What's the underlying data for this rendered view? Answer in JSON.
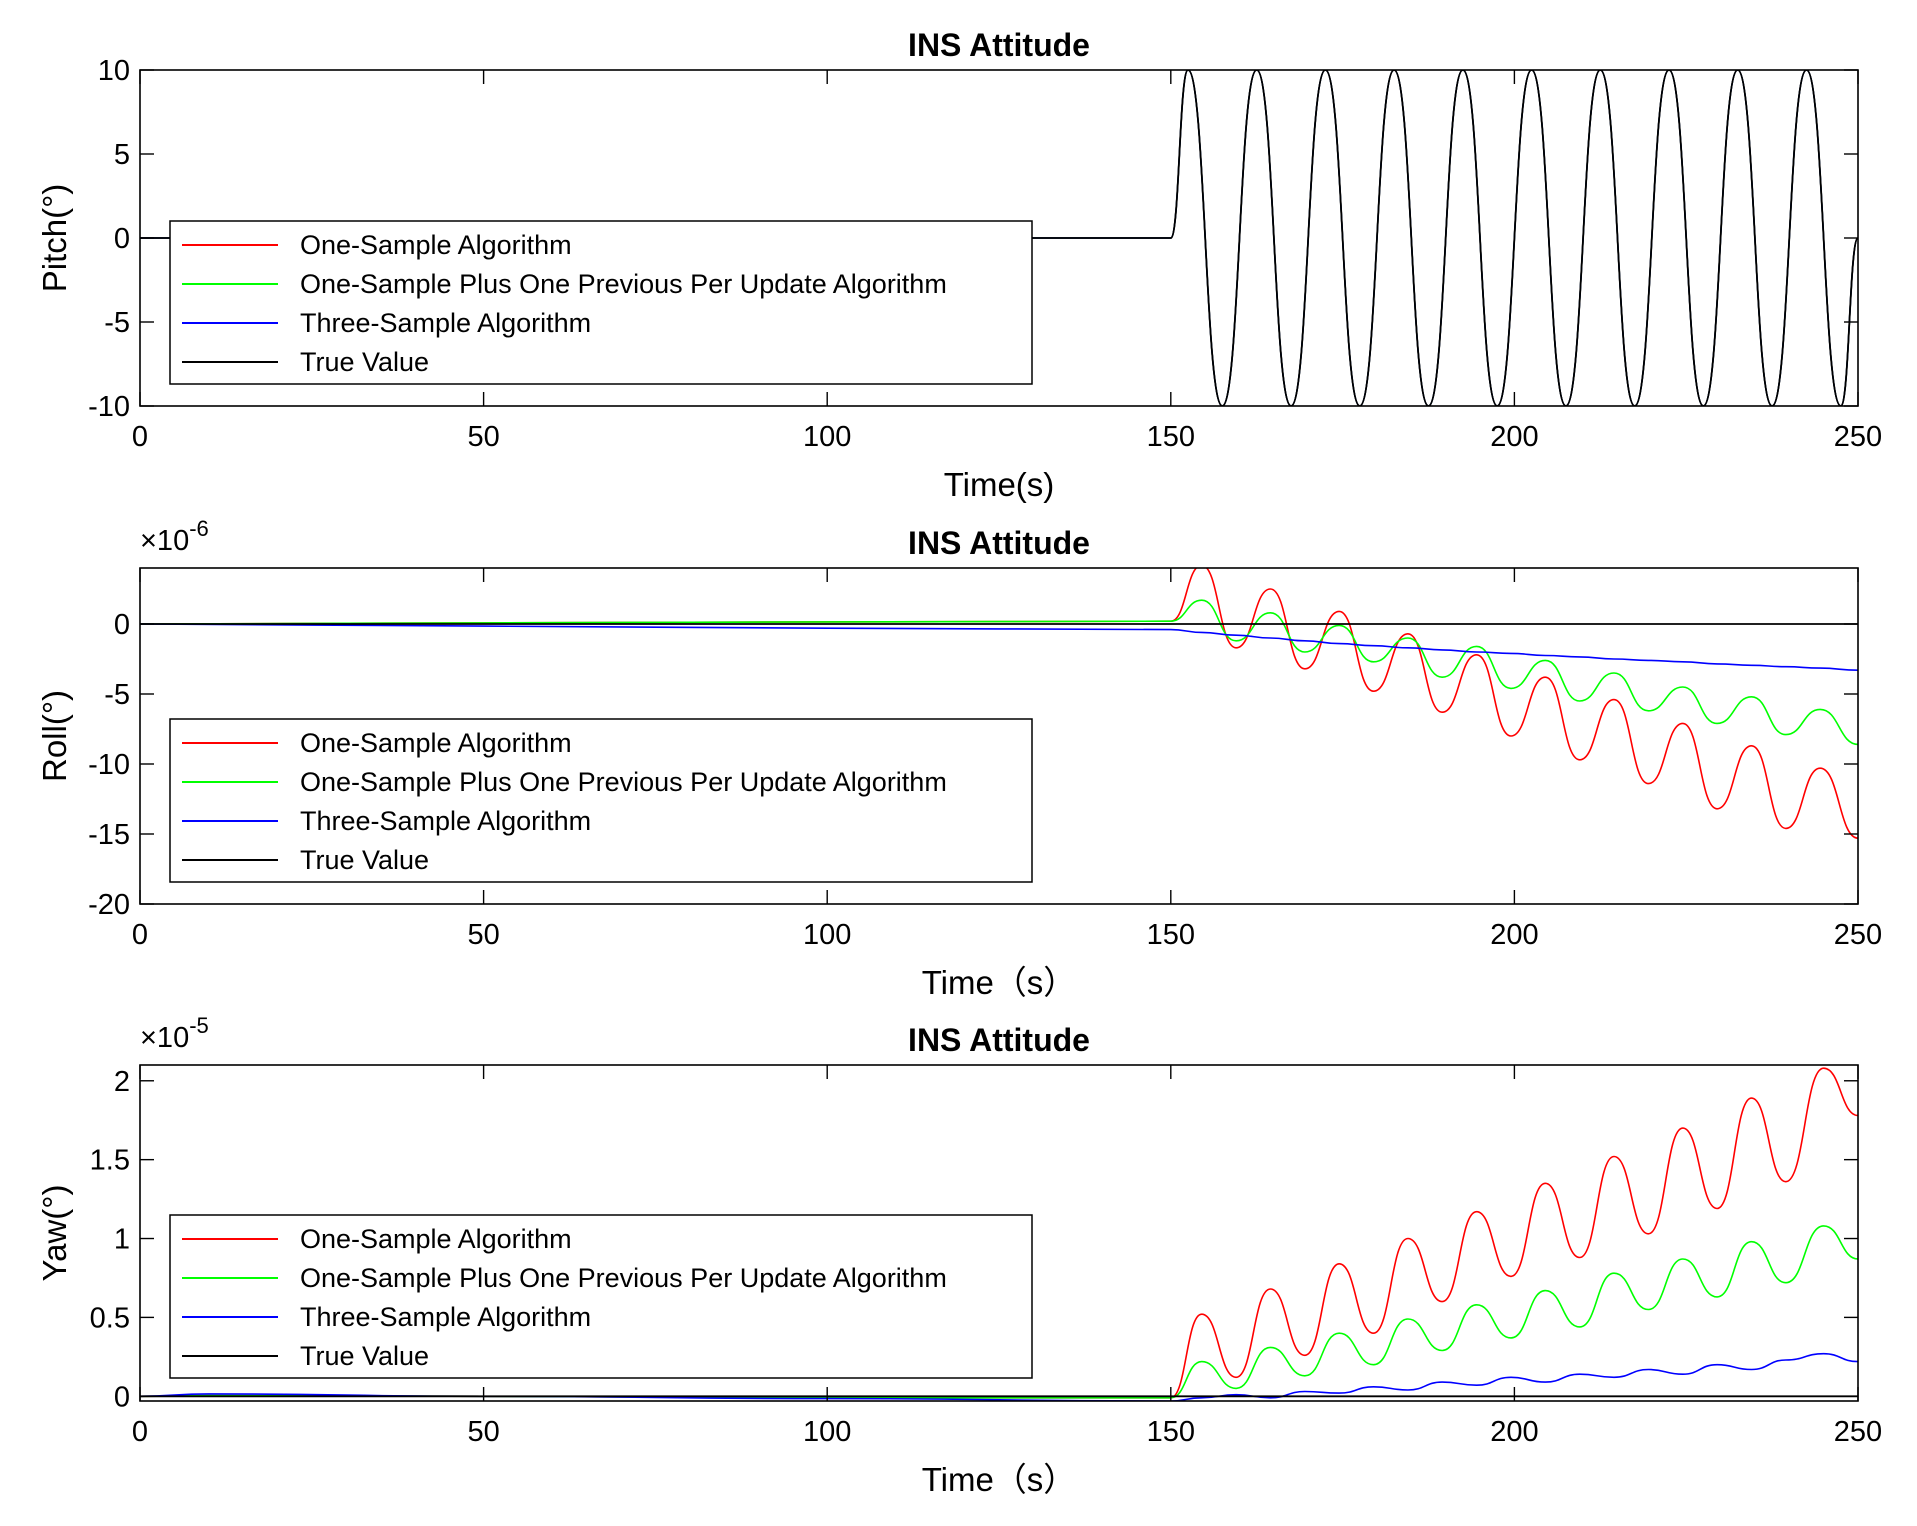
{
  "chart_data": [
    {
      "type": "line",
      "title": "INS Attitude",
      "xlabel": "Time(s)",
      "ylabel": "Pitch(°)",
      "exponent_label": "",
      "xlim": [
        0,
        250
      ],
      "ylim": [
        -10,
        10
      ],
      "xticks": [
        0,
        50,
        100,
        150,
        200,
        250
      ],
      "yticks": [
        -10,
        -5,
        0,
        5,
        10
      ],
      "x": [
        0,
        150,
        152.5,
        157.5,
        162.5,
        167.5,
        172.5,
        177.5,
        182.5,
        187.5,
        192.5,
        197.5,
        202.5,
        207.5,
        212.5,
        217.5,
        222.5,
        227.5,
        232.5,
        237.5,
        242.5,
        247.5,
        250
      ],
      "legend_location": "left",
      "series": [
        {
          "name": "One-Sample Algorithm",
          "color": "#ff0000",
          "values": [
            0,
            0,
            10,
            -10,
            10,
            -10,
            10,
            -10,
            10,
            -10,
            10,
            -10,
            10,
            -10,
            10,
            -10,
            10,
            -10,
            10,
            -10,
            10,
            -10,
            0
          ]
        },
        {
          "name": "One-Sample Plus One Previous Per Update Algorithm",
          "color": "#00ff00",
          "values": [
            0,
            0,
            10,
            -10,
            10,
            -10,
            10,
            -10,
            10,
            -10,
            10,
            -10,
            10,
            -10,
            10,
            -10,
            10,
            -10,
            10,
            -10,
            10,
            -10,
            0
          ]
        },
        {
          "name": "Three-Sample Algorithm",
          "color": "#0000ff",
          "values": [
            0,
            0,
            10,
            -10,
            10,
            -10,
            10,
            -10,
            10,
            -10,
            10,
            -10,
            10,
            -10,
            10,
            -10,
            10,
            -10,
            10,
            -10,
            10,
            -10,
            0
          ]
        },
        {
          "name": "True Value",
          "color": "#000000",
          "values": [
            0,
            0,
            10,
            -10,
            10,
            -10,
            10,
            -10,
            10,
            -10,
            10,
            -10,
            10,
            -10,
            10,
            -10,
            10,
            -10,
            10,
            -10,
            10,
            -10,
            0
          ]
        }
      ]
    },
    {
      "type": "line",
      "title": "INS Attitude",
      "xlabel": "Time（s）",
      "ylabel": "Roll(°)",
      "exponent_label": "×10",
      "exponent_power": "-6",
      "xlim": [
        0,
        250
      ],
      "ylim": [
        -20,
        4
      ],
      "xticks": [
        0,
        50,
        100,
        150,
        200,
        250
      ],
      "yticks": [
        -20,
        -15,
        -10,
        -5,
        0
      ],
      "x": [
        0,
        50,
        100,
        150,
        154.5,
        159.5,
        164.5,
        169.5,
        174.5,
        179.5,
        184.5,
        189.5,
        194.5,
        199.5,
        204.5,
        209.5,
        214.5,
        219.5,
        224.5,
        229.5,
        234.5,
        239.5,
        244.5,
        250
      ],
      "legend_location": "left",
      "series": [
        {
          "name": "One-Sample Algorithm",
          "color": "#ff0000",
          "values": [
            0,
            0.08,
            0.15,
            0.2,
            4.2,
            -1.7,
            2.5,
            -3.2,
            0.9,
            -4.8,
            -0.7,
            -6.3,
            -2.2,
            -8,
            -3.8,
            -9.7,
            -5.4,
            -11.4,
            -7.1,
            -13.2,
            -8.7,
            -14.6,
            -10.3,
            -15.3
          ]
        },
        {
          "name": "One-Sample Plus One Previous Per Update Algorithm",
          "color": "#00ff00",
          "values": [
            0,
            0.08,
            0.15,
            0.2,
            1.7,
            -1.2,
            0.8,
            -2,
            -0.1,
            -2.7,
            -1,
            -3.8,
            -1.6,
            -4.6,
            -2.6,
            -5.5,
            -3.5,
            -6.2,
            -4.5,
            -7.1,
            -5.2,
            -7.9,
            -6.1,
            -8.6
          ]
        },
        {
          "name": "Three-Sample Algorithm",
          "color": "#0000ff",
          "values": [
            0,
            -0.15,
            -0.3,
            -0.4,
            -0.6,
            -0.8,
            -1,
            -1.2,
            -1.4,
            -1.55,
            -1.7,
            -1.85,
            -2,
            -2.1,
            -2.25,
            -2.35,
            -2.5,
            -2.6,
            -2.7,
            -2.85,
            -2.95,
            -3.05,
            -3.15,
            -3.3
          ]
        },
        {
          "name": "True Value",
          "color": "#000000",
          "values": [
            0,
            0,
            0,
            0,
            0,
            0,
            0,
            0,
            0,
            0,
            0,
            0,
            0,
            0,
            0,
            0,
            0,
            0,
            0,
            0,
            0,
            0,
            0,
            0
          ]
        }
      ]
    },
    {
      "type": "line",
      "title": "INS Attitude",
      "xlabel": "Time（s）",
      "ylabel": "Yaw(°)",
      "exponent_label": "×10",
      "exponent_power": "-5",
      "xlim": [
        0,
        250
      ],
      "ylim": [
        -0.03,
        2.1
      ],
      "xticks": [
        0,
        50,
        100,
        150,
        200,
        250
      ],
      "yticks": [
        0,
        0.5,
        1,
        1.5,
        2
      ],
      "ytick_labels": [
        "0",
        "0.5",
        "1",
        "1.5",
        "2"
      ],
      "x": [
        0,
        10,
        50,
        100,
        150,
        154.5,
        159.5,
        164.5,
        169.5,
        174.5,
        179.5,
        184.5,
        189.5,
        194.5,
        199.5,
        204.5,
        209.5,
        214.5,
        219.5,
        224.5,
        229.5,
        234.5,
        239.5,
        245,
        250
      ],
      "legend_location": "left",
      "series": [
        {
          "name": "One-Sample Algorithm",
          "color": "#ff0000",
          "values": [
            0,
            0.005,
            0,
            -0.01,
            -0.01,
            0.52,
            0.12,
            0.68,
            0.26,
            0.84,
            0.4,
            1,
            0.6,
            1.17,
            0.76,
            1.35,
            0.88,
            1.52,
            1.03,
            1.7,
            1.19,
            1.89,
            1.36,
            2.08,
            1.78
          ]
        },
        {
          "name": "One-Sample Plus One Previous Per Update Algorithm",
          "color": "#00ff00",
          "values": [
            0,
            0.005,
            0,
            -0.01,
            -0.01,
            0.22,
            0.05,
            0.31,
            0.13,
            0.4,
            0.2,
            0.49,
            0.29,
            0.58,
            0.37,
            0.67,
            0.44,
            0.78,
            0.55,
            0.87,
            0.63,
            0.98,
            0.72,
            1.08,
            0.87
          ]
        },
        {
          "name": "Three-Sample Algorithm",
          "color": "#0000ff",
          "values": [
            0,
            0.015,
            0,
            -0.015,
            -0.03,
            -0.01,
            0.01,
            -0.01,
            0.03,
            0.02,
            0.06,
            0.04,
            0.09,
            0.07,
            0.12,
            0.09,
            0.14,
            0.12,
            0.17,
            0.14,
            0.2,
            0.17,
            0.23,
            0.27,
            0.22
          ]
        },
        {
          "name": "True Value",
          "color": "#000000",
          "values": [
            0,
            0,
            0,
            0,
            0,
            0,
            0,
            0,
            0,
            0,
            0,
            0,
            0,
            0,
            0,
            0,
            0,
            0,
            0,
            0,
            0,
            0,
            0,
            0,
            0
          ]
        }
      ]
    }
  ]
}
